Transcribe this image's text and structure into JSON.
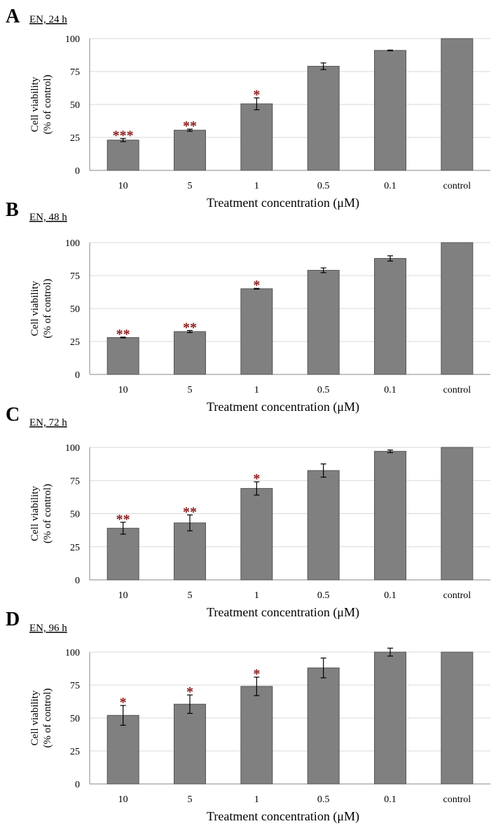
{
  "colors": {
    "bar": "#808080",
    "bar_edge": "#555555",
    "grid": "#d9d9d9",
    "axis": "#888888",
    "significance": "#8b1a1a"
  },
  "chart_data": [
    {
      "type": "bar",
      "panel": "A",
      "title": "EN, 24 h",
      "categories": [
        "10",
        "5",
        "1",
        "0.5",
        "0.1",
        "control"
      ],
      "values": [
        23,
        30.5,
        50.5,
        79,
        91,
        100
      ],
      "errors": [
        1.2,
        0.8,
        4.5,
        2.5,
        0.3,
        0
      ],
      "significance": [
        "***",
        "**",
        "*",
        "",
        "",
        ""
      ],
      "xlabel": "Treatment concentration (μM)",
      "ylabel": [
        "Cell viability",
        "(% of control)"
      ],
      "yticks": [
        "0",
        "25",
        "50",
        "75",
        "100"
      ],
      "ylim": [
        0,
        100
      ],
      "grid": true
    },
    {
      "type": "bar",
      "panel": "B",
      "title": "EN, 48 h",
      "categories": [
        "10",
        "5",
        "1",
        "0.5",
        "0.1",
        "control"
      ],
      "values": [
        28,
        32.5,
        65,
        79,
        88,
        100
      ],
      "errors": [
        0.3,
        0.8,
        0.3,
        1.8,
        2,
        0
      ],
      "significance": [
        "**",
        "**",
        "*",
        "",
        "",
        ""
      ],
      "xlabel": "Treatment concentration (μM)",
      "ylabel": [
        "Cell viability",
        "(% of control)"
      ],
      "yticks": [
        "0",
        "25",
        "50",
        "75",
        "100"
      ],
      "ylim": [
        0,
        100
      ],
      "grid": true
    },
    {
      "type": "bar",
      "panel": "C",
      "title": "EN, 72 h",
      "categories": [
        "10",
        "5",
        "1",
        "0.5",
        "0.1",
        "control"
      ],
      "values": [
        39,
        43,
        69,
        82.5,
        97,
        100
      ],
      "errors": [
        4.5,
        6,
        5,
        5,
        1,
        0
      ],
      "significance": [
        "**",
        "**",
        "*",
        "",
        "",
        ""
      ],
      "xlabel": "Treatment concentration (μM)",
      "ylabel": [
        "Cell viability",
        "(% of control)"
      ],
      "yticks": [
        "0",
        "25",
        "50",
        "75",
        "100"
      ],
      "ylim": [
        0,
        100
      ],
      "grid": true
    },
    {
      "type": "bar",
      "panel": "D",
      "title": "EN, 96 h",
      "categories": [
        "10",
        "5",
        "1",
        "0.5",
        "0.1",
        "control"
      ],
      "values": [
        52,
        60.5,
        74,
        88,
        100,
        100
      ],
      "errors": [
        7.5,
        7,
        7,
        7.5,
        3,
        0
      ],
      "significance": [
        "*",
        "*",
        "*",
        "",
        "",
        ""
      ],
      "xlabel": "Treatment concentration (μM)",
      "ylabel": [
        "Cell viability",
        "(% of control)"
      ],
      "yticks": [
        "0",
        "25",
        "50",
        "75",
        "100"
      ],
      "ylim": [
        0,
        100
      ],
      "grid": true
    }
  ]
}
